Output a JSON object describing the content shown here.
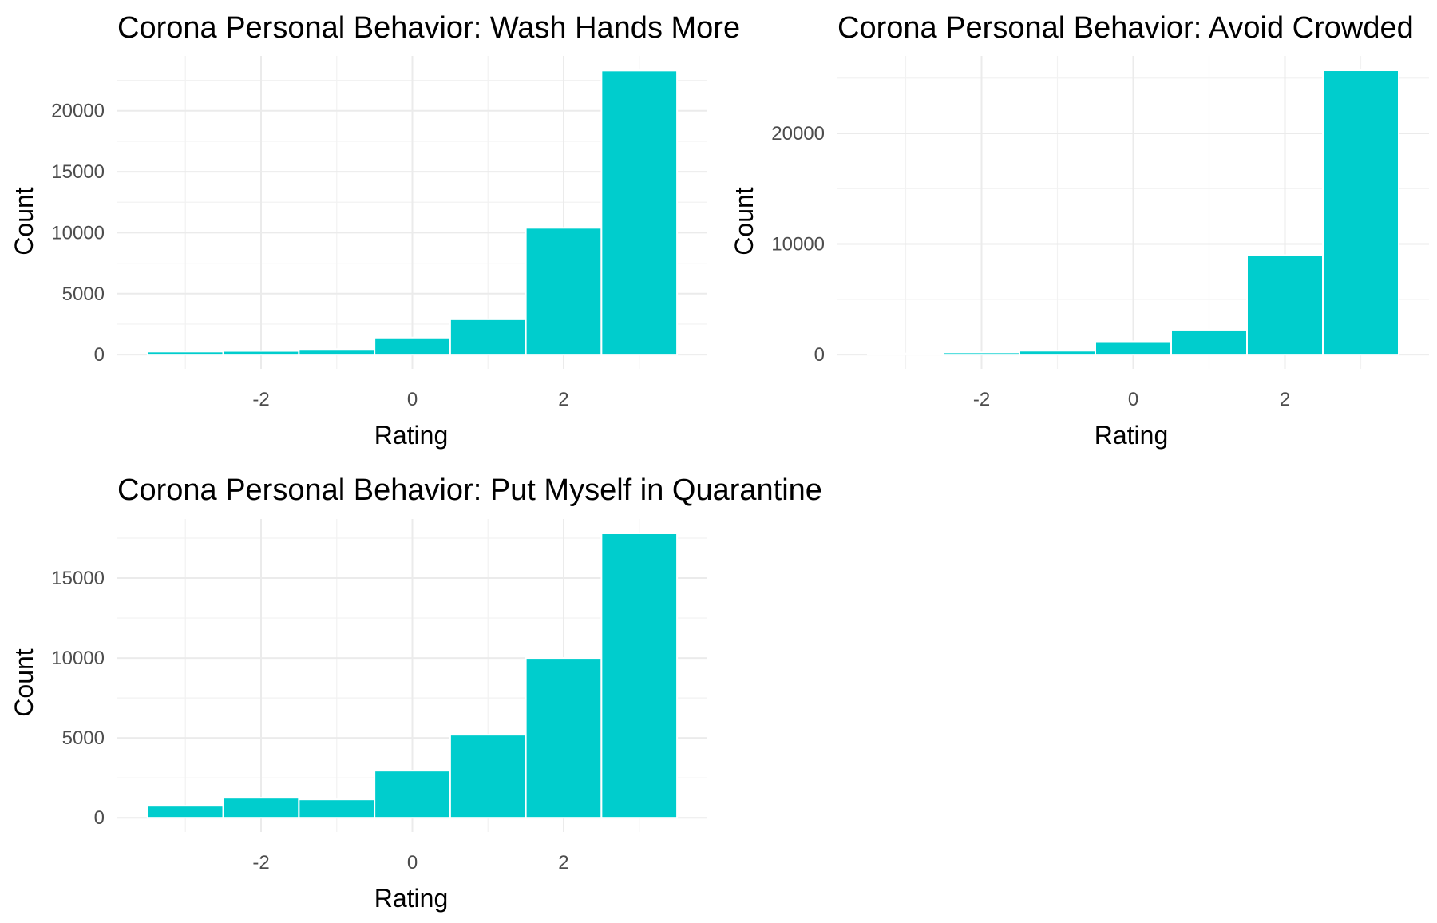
{
  "colors": {
    "bar": "#00CDCD"
  },
  "chart_data": [
    {
      "type": "bar",
      "title": "Corona Personal Behavior: Wash Hands More",
      "xlabel": "Rating",
      "ylabel": "Count",
      "x": [
        -3,
        -2,
        -1,
        0,
        1,
        2,
        3
      ],
      "values": [
        250,
        300,
        450,
        1400,
        2900,
        10400,
        23300
      ],
      "xticks": [
        -2,
        0,
        2
      ],
      "yticks": [
        0,
        5000,
        10000,
        15000,
        20000
      ],
      "xlim": [
        -3.9,
        3.9
      ],
      "ylim": [
        -1170,
        24500
      ],
      "grid": true,
      "legend": "none"
    },
    {
      "type": "bar",
      "title": "Corona Personal Behavior: Avoid Crowded",
      "xlabel": "Rating",
      "ylabel": "Count",
      "x": [
        -3,
        -2,
        -1,
        0,
        1,
        2,
        3
      ],
      "values": [
        100,
        200,
        350,
        1200,
        2250,
        9000,
        25700
      ],
      "xticks": [
        -2,
        0,
        2
      ],
      "yticks": [
        0,
        10000,
        20000
      ],
      "xlim": [
        -3.9,
        3.9
      ],
      "ylim": [
        -1290,
        27000
      ],
      "grid": true,
      "legend": "none"
    },
    {
      "type": "bar",
      "title": "Corona Personal Behavior: Put Myself in Quarantine",
      "xlabel": "Rating",
      "ylabel": "Count",
      "x": [
        -3,
        -2,
        -1,
        0,
        1,
        2,
        3
      ],
      "values": [
        750,
        1250,
        1150,
        2950,
        5200,
        10000,
        17800
      ],
      "xticks": [
        -2,
        0,
        2
      ],
      "yticks": [
        0,
        5000,
        10000,
        15000
      ],
      "xlim": [
        -3.9,
        3.9
      ],
      "ylim": [
        -890,
        18700
      ],
      "grid": true,
      "legend": "none"
    }
  ]
}
